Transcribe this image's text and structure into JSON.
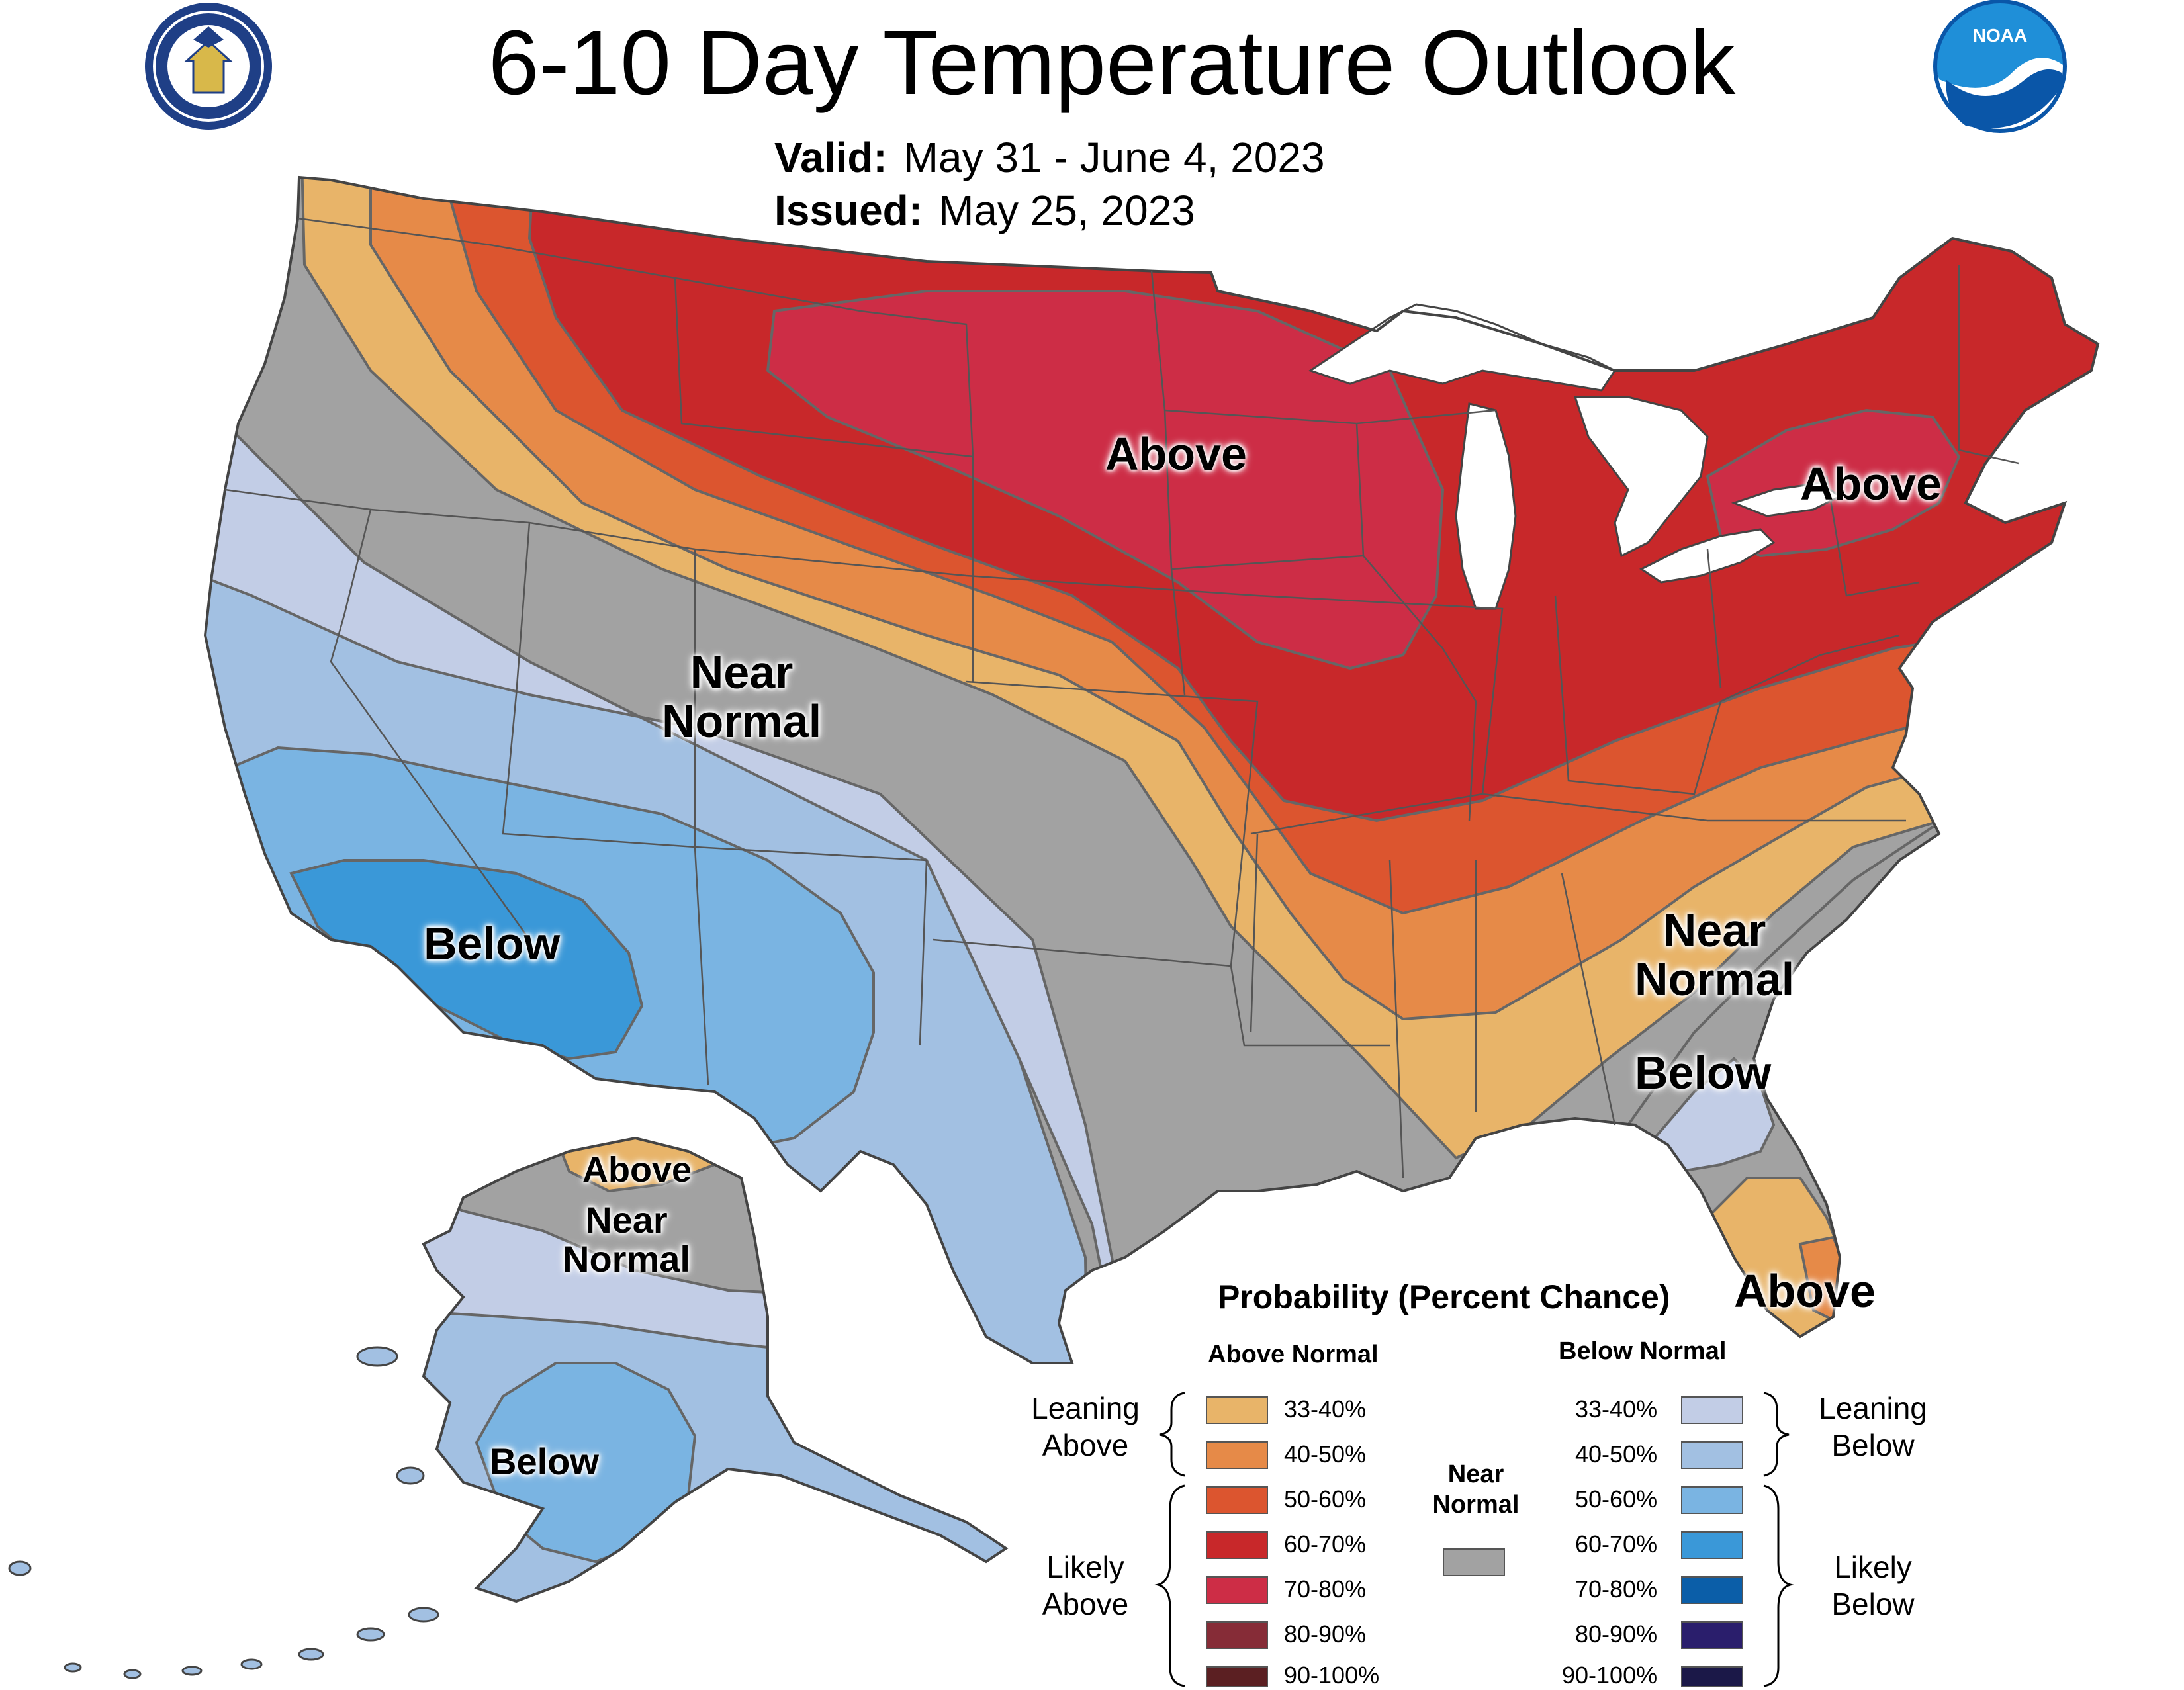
{
  "header": {
    "title": "6-10 Day Temperature Outlook",
    "valid_label": "Valid:",
    "valid_value": "May 31 - June 4, 2023",
    "issued_label": "Issued:",
    "issued_value": "May 25, 2023"
  },
  "logos": {
    "left": "department-of-commerce-seal",
    "right": "noaa-logo",
    "noaa_text": "NOAA"
  },
  "colors": {
    "a33": "#e8b469",
    "a40": "#e68a48",
    "a50": "#dc552f",
    "a60": "#c8282a",
    "a70": "#cd2d46",
    "a80": "#862c37",
    "a90": "#5b1f22",
    "b33": "#c2cde6",
    "b40": "#a2c0e2",
    "b50": "#7ab4e2",
    "b60": "#3a98d8",
    "b70": "#0b5ea8",
    "b80": "#2a1e6c",
    "b90": "#1b1848",
    "near": "#a2a2a2",
    "lakes": "#ffffff",
    "border": "#555555"
  },
  "map_labels": {
    "north_above": "Above",
    "northeast_above": "Above",
    "west_near_1": "Near",
    "west_near_2": "Normal",
    "sw_below": "Below",
    "se_near_1": "Near",
    "se_near_2": "Normal",
    "se_below": "Below",
    "fl_above": "Above",
    "ak_above": "Above",
    "ak_near_1": "Near",
    "ak_near_2": "Normal",
    "ak_below": "Below"
  },
  "legend": {
    "title": "Probability (Percent Chance)",
    "above_header": "Above Normal",
    "below_header": "Below Normal",
    "near_header_1": "Near",
    "near_header_2": "Normal",
    "leaning_above_1": "Leaning",
    "leaning_above_2": "Above",
    "likely_above_1": "Likely",
    "likely_above_2": "Above",
    "leaning_below_1": "Leaning",
    "leaning_below_2": "Below",
    "likely_below_1": "Likely",
    "likely_below_2": "Below",
    "above_bins": [
      "33-40%",
      "40-50%",
      "50-60%",
      "60-70%",
      "70-80%",
      "80-90%",
      "90-100%"
    ],
    "below_bins": [
      "33-40%",
      "40-50%",
      "50-60%",
      "60-70%",
      "70-80%",
      "80-90%",
      "90-100%"
    ]
  }
}
